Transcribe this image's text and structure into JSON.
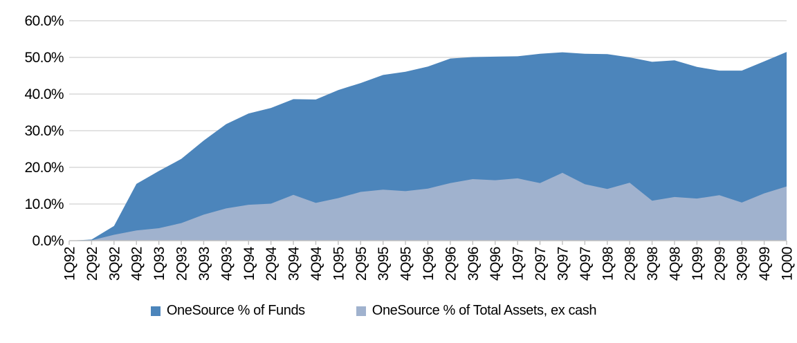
{
  "colors": {
    "series_funds": "#4C85BB",
    "series_assets": "#A0B2CE",
    "gridline": "#D9D9D9",
    "axis_line": "#BFBFBF",
    "tick_text": "#000000",
    "background": "#FFFFFF"
  },
  "legend": {
    "entries": [
      {
        "label": "OneSource % of Funds",
        "color": "#4C85BB"
      },
      {
        "label": "OneSource % of Total Assets, ex cash",
        "color": "#A0B2CE"
      }
    ]
  },
  "chart_data": {
    "type": "area",
    "overlapping": true,
    "title": "",
    "xlabel": "",
    "ylabel": "",
    "ylim": [
      0,
      60
    ],
    "ytick_step": 10,
    "grid": true,
    "legend_position": "bottom",
    "y_tick_labels": [
      "0.0%",
      "10.0%",
      "20.0%",
      "30.0%",
      "40.0%",
      "50.0%",
      "60.0%"
    ],
    "categories": [
      "1Q92",
      "2Q92",
      "3Q92",
      "4Q92",
      "1Q93",
      "2Q93",
      "3Q93",
      "4Q93",
      "1Q94",
      "2Q94",
      "3Q94",
      "4Q94",
      "1Q95",
      "2Q95",
      "3Q95",
      "4Q95",
      "1Q96",
      "2Q96",
      "3Q96",
      "4Q96",
      "1Q97",
      "2Q97",
      "3Q97",
      "4Q97",
      "1Q98",
      "2Q98",
      "3Q98",
      "4Q98",
      "1Q99",
      "2Q99",
      "3Q99",
      "4Q99",
      "1Q00"
    ],
    "series": [
      {
        "name": "OneSource % of Funds",
        "color": "#4C85BB",
        "values": [
          0.0,
          0.3,
          4.0,
          15.5,
          19.0,
          22.3,
          27.3,
          31.8,
          34.7,
          36.2,
          38.6,
          38.5,
          41.1,
          43.0,
          45.2,
          46.1,
          47.5,
          49.7,
          50.1,
          50.2,
          50.3,
          51.0,
          51.4,
          51.0,
          50.9,
          50.0,
          48.8,
          49.2,
          47.4,
          46.4,
          46.4,
          48.9,
          51.5
        ]
      },
      {
        "name": "OneSource % of Total Assets, ex cash",
        "color": "#A0B2CE",
        "values": [
          0.0,
          0.1,
          1.6,
          2.8,
          3.4,
          4.8,
          7.1,
          8.8,
          9.8,
          10.1,
          12.5,
          10.3,
          11.6,
          13.3,
          13.9,
          13.5,
          14.2,
          15.7,
          16.8,
          16.5,
          17.0,
          15.7,
          18.5,
          15.4,
          14.1,
          15.8,
          10.9,
          11.9,
          11.5,
          12.4,
          10.4,
          12.9,
          14.8
        ]
      }
    ]
  }
}
